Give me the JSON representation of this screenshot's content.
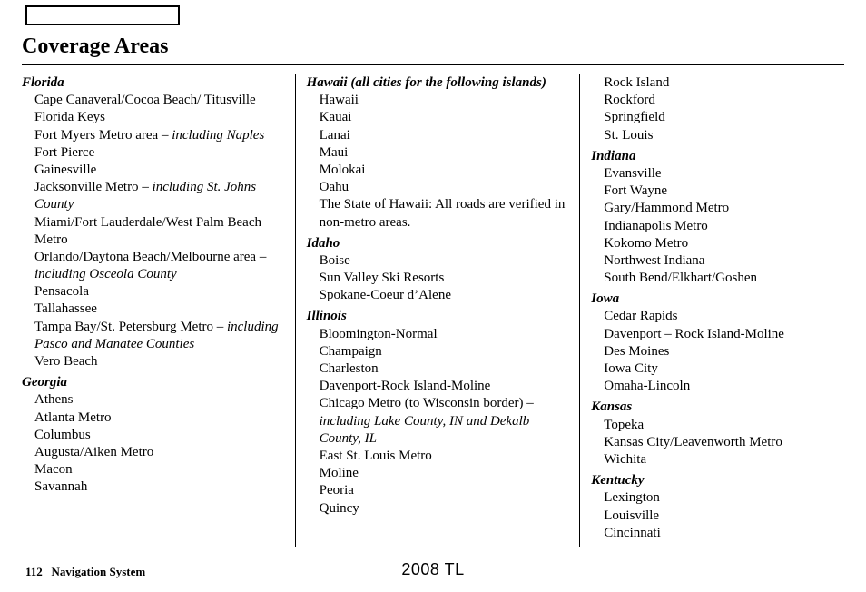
{
  "top_box_present": true,
  "title": "Coverage Areas",
  "footer": {
    "page": "112",
    "label": "Navigation System"
  },
  "model": "2008  TL",
  "columns": [
    {
      "sections": [
        {
          "heading": "Florida",
          "items": [
            {
              "text": "Cape Canaveral/Cocoa Beach/ Titusville"
            },
            {
              "text": "Florida Keys"
            },
            {
              "text": "Fort Myers Metro area",
              "suffix": " – ",
              "italic": "including Naples"
            },
            {
              "text": "Fort Pierce"
            },
            {
              "text": "Gainesville"
            },
            {
              "text": "Jacksonville Metro",
              "suffix": " – ",
              "italic": "including St. Johns County"
            },
            {
              "text": "Miami/Fort Lauderdale/West Palm Beach Metro"
            },
            {
              "text": "Orlando/Daytona Beach/Melbourne area",
              "suffix": " – ",
              "italic": "including Osceola County"
            },
            {
              "text": "Pensacola"
            },
            {
              "text": "Tallahassee"
            },
            {
              "text": "Tampa Bay/St. Petersburg Metro",
              "suffix": " – ",
              "italic": "including Pasco and Manatee Counties"
            },
            {
              "text": "Vero Beach"
            }
          ]
        },
        {
          "heading": "Georgia",
          "items": [
            {
              "text": "Athens"
            },
            {
              "text": "Atlanta Metro"
            },
            {
              "text": "Columbus"
            },
            {
              "text": "Augusta/Aiken Metro"
            },
            {
              "text": "Macon"
            },
            {
              "text": "Savannah"
            }
          ]
        }
      ]
    },
    {
      "sections": [
        {
          "heading": "Hawaii (all cities for the following islands)",
          "items": [
            {
              "text": "Hawaii"
            },
            {
              "text": "Kauai"
            },
            {
              "text": "Lanai"
            },
            {
              "text": "Maui"
            },
            {
              "text": "Molokai"
            },
            {
              "text": "Oahu"
            },
            {
              "text": "The State of Hawaii: All roads are verified in non-metro areas."
            }
          ]
        },
        {
          "heading": "Idaho",
          "items": [
            {
              "text": "Boise"
            },
            {
              "text": "Sun Valley Ski Resorts"
            },
            {
              "text": "Spokane-Coeur d’Alene"
            }
          ]
        },
        {
          "heading": "Illinois",
          "items": [
            {
              "text": "Bloomington-Normal"
            },
            {
              "text": "Champaign"
            },
            {
              "text": "Charleston"
            },
            {
              "text": "Davenport-Rock Island-Moline"
            },
            {
              "text": "Chicago Metro (to Wisconsin border)",
              "suffix": " – ",
              "italic": "including Lake County, IN and Dekalb County, IL"
            },
            {
              "text": "East St. Louis Metro"
            },
            {
              "text": "Moline"
            },
            {
              "text": "Peoria"
            },
            {
              "text": "Quincy"
            }
          ]
        }
      ]
    },
    {
      "sections": [
        {
          "heading": null,
          "items": [
            {
              "text": "Rock Island"
            },
            {
              "text": "Rockford"
            },
            {
              "text": "Springfield"
            },
            {
              "text": "St. Louis"
            }
          ]
        },
        {
          "heading": "Indiana",
          "items": [
            {
              "text": "Evansville"
            },
            {
              "text": "Fort Wayne"
            },
            {
              "text": "Gary/Hammond Metro"
            },
            {
              "text": "Indianapolis Metro"
            },
            {
              "text": "Kokomo Metro"
            },
            {
              "text": "Northwest Indiana"
            },
            {
              "text": "South Bend/Elkhart/Goshen"
            }
          ]
        },
        {
          "heading": "Iowa",
          "items": [
            {
              "text": "Cedar Rapids"
            },
            {
              "text": "Davenport – Rock Island-Moline"
            },
            {
              "text": "Des Moines"
            },
            {
              "text": "Iowa City"
            },
            {
              "text": "Omaha-Lincoln"
            }
          ]
        },
        {
          "heading": "Kansas",
          "items": [
            {
              "text": "Topeka"
            },
            {
              "text": "Kansas City/Leavenworth Metro"
            },
            {
              "text": "Wichita"
            }
          ]
        },
        {
          "heading": "Kentucky",
          "items": [
            {
              "text": "Lexington"
            },
            {
              "text": "Louisville"
            },
            {
              "text": "Cincinnati"
            }
          ]
        }
      ]
    }
  ]
}
